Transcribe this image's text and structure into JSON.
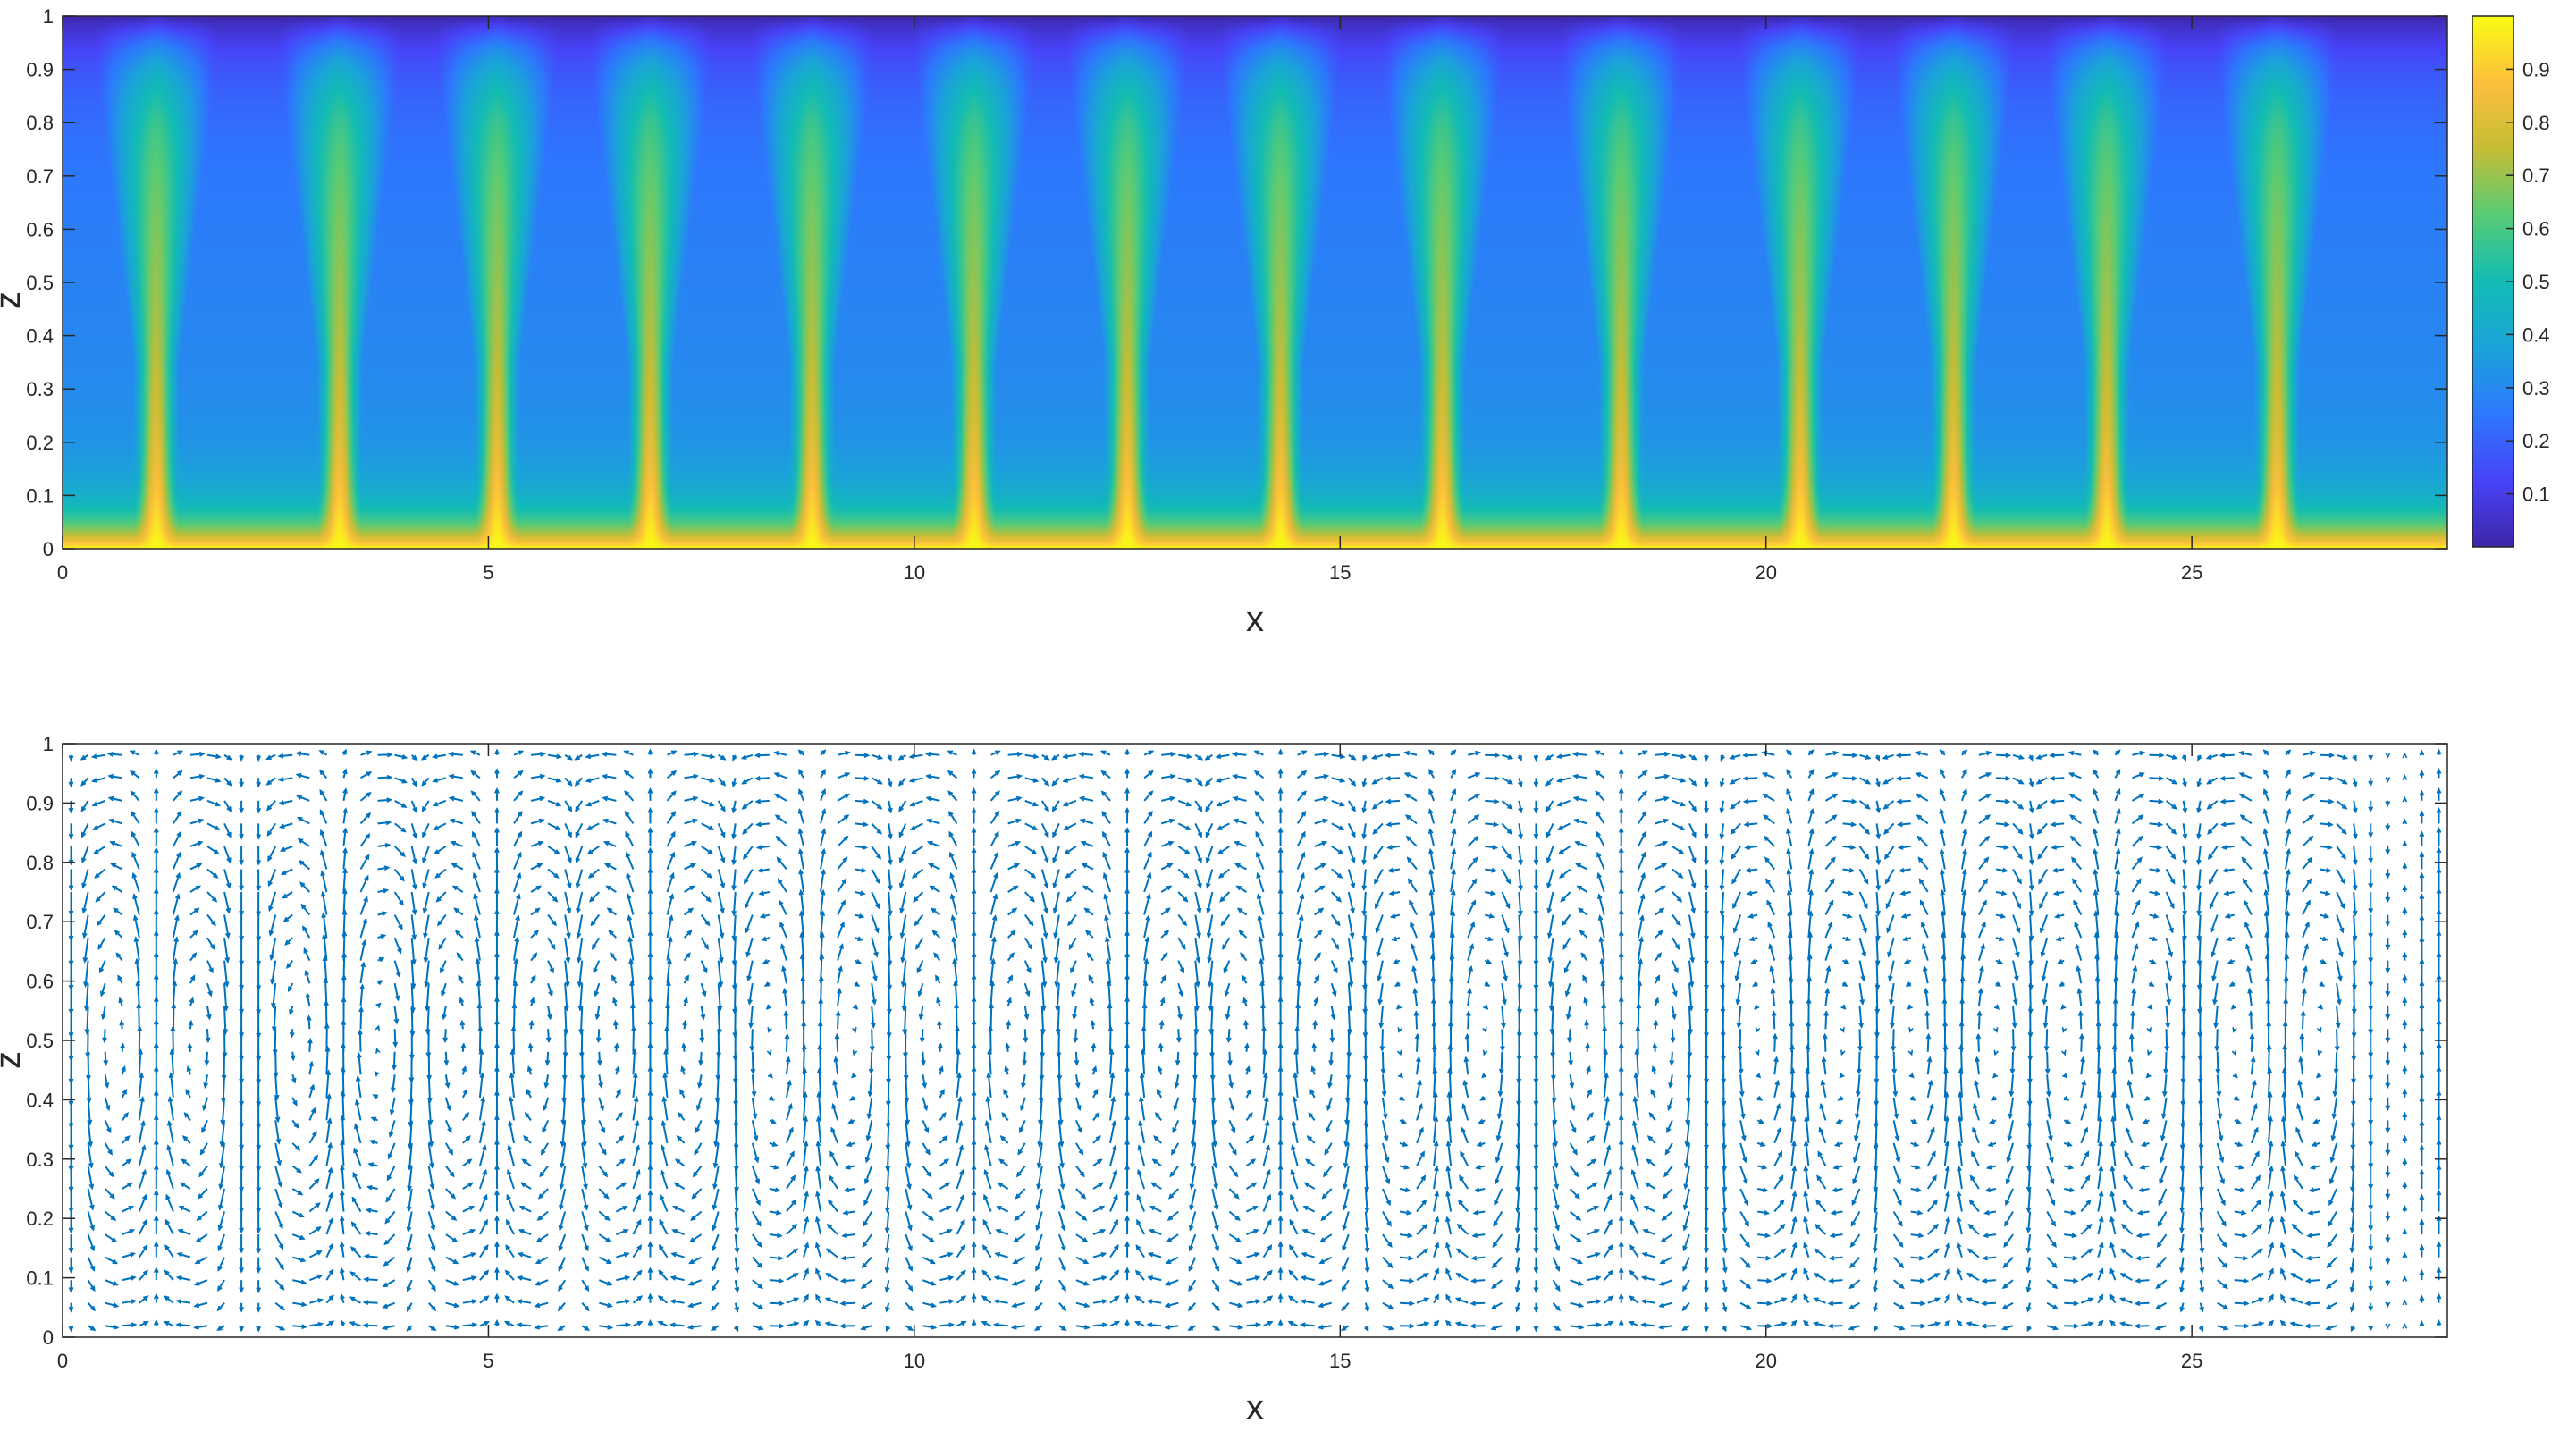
{
  "chart_data": [
    {
      "type": "heatmap",
      "title": "",
      "xlabel": "x",
      "ylabel": "z",
      "xlim": [
        0,
        28
      ],
      "ylim": [
        0,
        1
      ],
      "xticks": [
        "0",
        "5",
        "10",
        "15",
        "20",
        "25"
      ],
      "xtick_values": [
        0,
        5,
        10,
        15,
        20,
        25
      ],
      "yticks": [
        "0",
        "0.1",
        "0.2",
        "0.3",
        "0.4",
        "0.5",
        "0.6",
        "0.7",
        "0.8",
        "0.9",
        "1"
      ],
      "ytick_values": [
        0,
        0.1,
        0.2,
        0.3,
        0.4,
        0.5,
        0.6,
        0.7,
        0.8,
        0.9,
        1
      ],
      "colormap": "parula",
      "colorbar": {
        "ticks": [
          "0.1",
          "0.2",
          "0.3",
          "0.4",
          "0.5",
          "0.6",
          "0.7",
          "0.8",
          "0.9"
        ],
        "tick_values": [
          0.1,
          0.2,
          0.3,
          0.4,
          0.5,
          0.6,
          0.7,
          0.8,
          0.9
        ],
        "range": [
          0,
          1
        ],
        "placement": "right"
      },
      "field": {
        "bottom_value": 1.0,
        "top_value": 0.0,
        "plume_centers_x": [
          1.1,
          3.25,
          5.1,
          6.9,
          8.8,
          10.7,
          12.5,
          14.3,
          16.2,
          18.3,
          20.4,
          22.2,
          24.0,
          26.0
        ],
        "plume_peak_value": 0.62,
        "background_mid_value": 0.25
      },
      "grid": false
    },
    {
      "type": "quiver",
      "title": "",
      "xlabel": "x",
      "ylabel": "z",
      "xlim": [
        0,
        28
      ],
      "ylim": [
        0,
        1
      ],
      "xticks": [
        "0",
        "5",
        "10",
        "15",
        "20",
        "25"
      ],
      "xtick_values": [
        0,
        5,
        10,
        15,
        20,
        25
      ],
      "yticks": [
        "0",
        "0.1",
        "0.2",
        "0.3",
        "0.4",
        "0.5",
        "0.6",
        "0.7",
        "0.8",
        "0.9",
        "1"
      ],
      "ytick_values": [
        0,
        0.1,
        0.2,
        0.3,
        0.4,
        0.5,
        0.6,
        0.7,
        0.8,
        0.9,
        1
      ],
      "arrow_color": "#0072BD",
      "upflow_x": [
        1.1,
        3.25,
        5.1,
        6.9,
        8.8,
        10.7,
        12.5,
        14.3,
        16.2,
        18.3,
        20.4,
        22.2,
        24.0,
        26.0
      ],
      "grid": false
    }
  ]
}
